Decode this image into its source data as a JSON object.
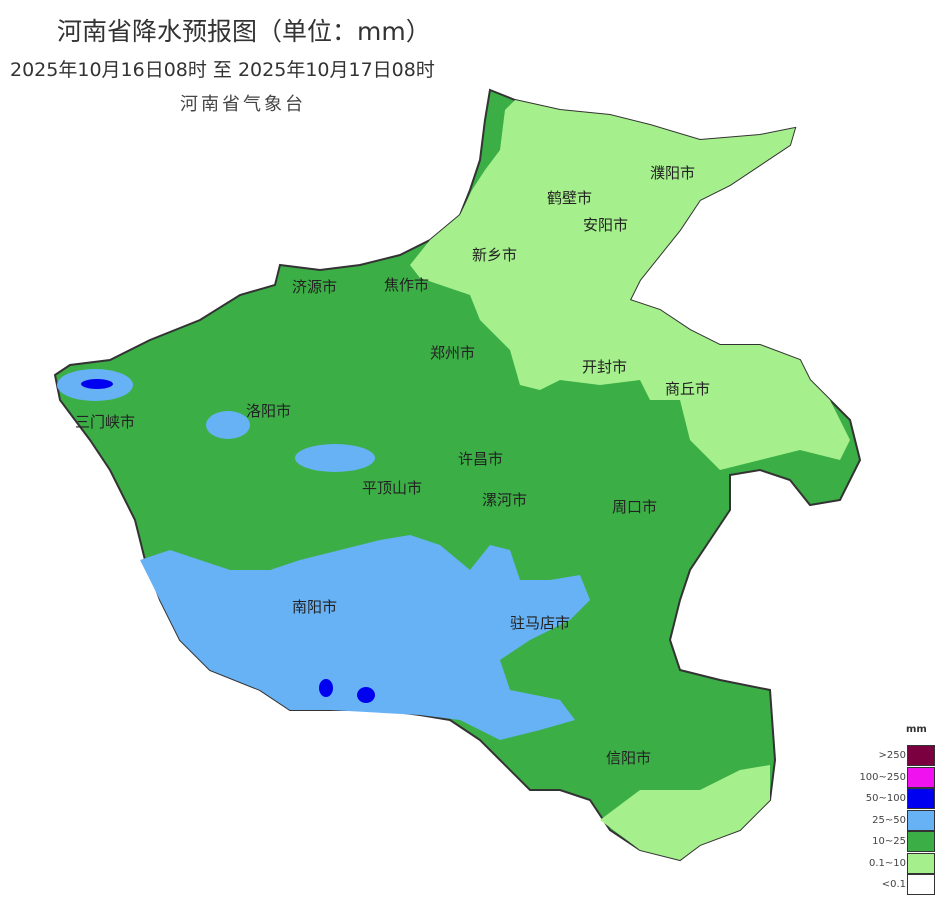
{
  "title": "河南省降水预报图（单位：mm）",
  "period": "2025年10月16日08时  至  2025年10月17日08时",
  "issuer": "河南省气象台",
  "cities": [
    {
      "name": "濮阳市"
    },
    {
      "name": "鹤壁市"
    },
    {
      "name": "安阳市"
    },
    {
      "name": "新乡市"
    },
    {
      "name": "济源市"
    },
    {
      "name": "焦作市"
    },
    {
      "name": "郑州市"
    },
    {
      "name": "开封市"
    },
    {
      "name": "商丘市"
    },
    {
      "name": "三门峡市"
    },
    {
      "name": "洛阳市"
    },
    {
      "name": "许昌市"
    },
    {
      "name": "平顶山市"
    },
    {
      "name": "漯河市"
    },
    {
      "name": "周口市"
    },
    {
      "name": "南阳市"
    },
    {
      "name": "驻马店市"
    },
    {
      "name": "信阳市"
    }
  ],
  "legend": {
    "unit": "mm",
    "items": [
      {
        "label": ">250",
        "color": "#7a0040"
      },
      {
        "label": "100~250",
        "color": "#f013f0"
      },
      {
        "label": "50~100",
        "color": "#0000f0"
      },
      {
        "label": "25~50",
        "color": "#66b2f5"
      },
      {
        "label": "10~25",
        "color": "#3cae46"
      },
      {
        "label": "0.1~10",
        "color": "#a5f08c"
      },
      {
        "label": "<0.1",
        "color": "#ffffff"
      }
    ]
  }
}
